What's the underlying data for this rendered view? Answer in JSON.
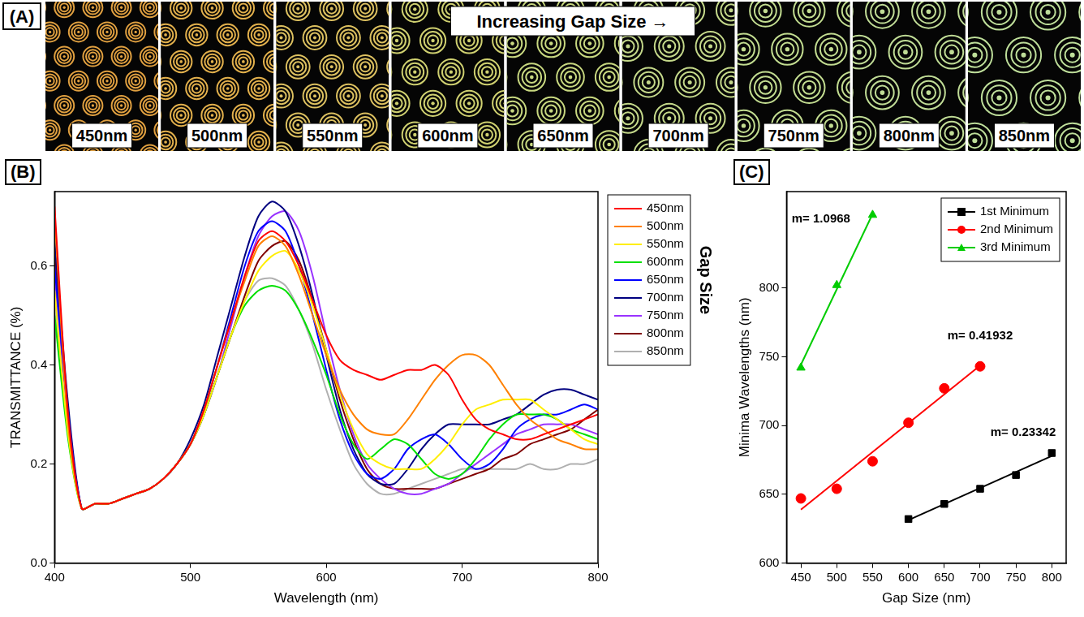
{
  "image_panel": {
    "panel_label": "(A)",
    "banner": "Increasing Gap Size →",
    "tiles": [
      "450nm",
      "500nm",
      "550nm",
      "600nm",
      "650nm",
      "700nm",
      "750nm",
      "800nm",
      "850nm"
    ]
  },
  "chart_data": [
    {
      "type": "line",
      "panel_label": "(B)",
      "x_label": "Wavelength (nm)",
      "y_label": "TRANSMITTANCE (%)",
      "x": [
        400,
        410,
        420,
        430,
        440,
        450,
        460,
        470,
        480,
        490,
        500,
        510,
        520,
        530,
        540,
        550,
        560,
        570,
        580,
        590,
        600,
        610,
        620,
        630,
        640,
        650,
        660,
        670,
        680,
        690,
        700,
        710,
        720,
        730,
        740,
        750,
        760,
        770,
        780,
        790,
        800
      ],
      "xlim": [
        400,
        800
      ],
      "xticks": [
        400,
        500,
        600,
        700,
        800
      ],
      "ylim": [
        0,
        0.75
      ],
      "yticks": [
        {
          "value": 0,
          "label": "0.0"
        },
        {
          "value": 0.2,
          "label": "0.2"
        },
        {
          "value": 0.4,
          "label": "0.4"
        },
        {
          "value": 0.6,
          "label": "0.6"
        }
      ],
      "grid": false,
      "legend": "right",
      "legend_title": "Gap Size",
      "series": [
        {
          "name": "450nm",
          "color": "#ff0000",
          "values": [
            0.72,
            0.3,
            0.11,
            0.12,
            0.12,
            0.13,
            0.14,
            0.15,
            0.17,
            0.2,
            0.24,
            0.31,
            0.4,
            0.49,
            0.58,
            0.65,
            0.67,
            0.65,
            0.6,
            0.53,
            0.46,
            0.41,
            0.39,
            0.38,
            0.37,
            0.38,
            0.39,
            0.39,
            0.4,
            0.38,
            0.33,
            0.29,
            0.27,
            0.26,
            0.25,
            0.25,
            0.26,
            0.27,
            0.28,
            0.29,
            0.3
          ]
        },
        {
          "name": "500nm",
          "color": "#ff8000",
          "values": [
            0.7,
            0.28,
            0.11,
            0.12,
            0.12,
            0.13,
            0.14,
            0.15,
            0.17,
            0.2,
            0.24,
            0.31,
            0.4,
            0.49,
            0.57,
            0.64,
            0.66,
            0.64,
            0.58,
            0.5,
            0.42,
            0.35,
            0.3,
            0.27,
            0.26,
            0.26,
            0.29,
            0.33,
            0.37,
            0.4,
            0.42,
            0.42,
            0.4,
            0.36,
            0.32,
            0.29,
            0.27,
            0.25,
            0.24,
            0.23,
            0.23
          ]
        },
        {
          "name": "550nm",
          "color": "#ffee00",
          "values": [
            0.55,
            0.26,
            0.11,
            0.12,
            0.12,
            0.13,
            0.14,
            0.15,
            0.17,
            0.2,
            0.24,
            0.3,
            0.38,
            0.46,
            0.53,
            0.59,
            0.62,
            0.63,
            0.59,
            0.52,
            0.43,
            0.34,
            0.27,
            0.22,
            0.2,
            0.19,
            0.19,
            0.19,
            0.21,
            0.24,
            0.28,
            0.31,
            0.32,
            0.33,
            0.33,
            0.33,
            0.31,
            0.29,
            0.27,
            0.25,
            0.24
          ]
        },
        {
          "name": "600nm",
          "color": "#00e000",
          "values": [
            0.5,
            0.25,
            0.11,
            0.12,
            0.12,
            0.13,
            0.14,
            0.15,
            0.17,
            0.2,
            0.24,
            0.3,
            0.38,
            0.46,
            0.52,
            0.55,
            0.56,
            0.55,
            0.51,
            0.45,
            0.38,
            0.3,
            0.24,
            0.21,
            0.23,
            0.25,
            0.24,
            0.21,
            0.18,
            0.17,
            0.18,
            0.21,
            0.25,
            0.28,
            0.3,
            0.3,
            0.3,
            0.29,
            0.27,
            0.26,
            0.25
          ]
        },
        {
          "name": "650nm",
          "color": "#0000ff",
          "values": [
            0.6,
            0.3,
            0.11,
            0.12,
            0.12,
            0.13,
            0.14,
            0.15,
            0.17,
            0.2,
            0.24,
            0.31,
            0.4,
            0.5,
            0.6,
            0.67,
            0.69,
            0.67,
            0.6,
            0.5,
            0.39,
            0.29,
            0.22,
            0.18,
            0.17,
            0.19,
            0.23,
            0.25,
            0.26,
            0.24,
            0.21,
            0.19,
            0.2,
            0.23,
            0.27,
            0.29,
            0.3,
            0.3,
            0.31,
            0.32,
            0.31
          ]
        },
        {
          "name": "700nm",
          "color": "#000080",
          "values": [
            0.65,
            0.32,
            0.11,
            0.12,
            0.12,
            0.13,
            0.14,
            0.15,
            0.17,
            0.2,
            0.25,
            0.32,
            0.42,
            0.52,
            0.62,
            0.7,
            0.73,
            0.71,
            0.64,
            0.54,
            0.42,
            0.31,
            0.23,
            0.18,
            0.16,
            0.16,
            0.19,
            0.23,
            0.26,
            0.28,
            0.28,
            0.28,
            0.28,
            0.29,
            0.3,
            0.32,
            0.34,
            0.35,
            0.35,
            0.34,
            0.33
          ]
        },
        {
          "name": "750nm",
          "color": "#9933ff",
          "values": [
            0.58,
            0.29,
            0.11,
            0.12,
            0.12,
            0.13,
            0.14,
            0.15,
            0.17,
            0.2,
            0.24,
            0.3,
            0.38,
            0.48,
            0.58,
            0.66,
            0.7,
            0.71,
            0.67,
            0.58,
            0.46,
            0.35,
            0.26,
            0.2,
            0.17,
            0.15,
            0.14,
            0.14,
            0.15,
            0.16,
            0.18,
            0.2,
            0.22,
            0.24,
            0.26,
            0.27,
            0.28,
            0.28,
            0.28,
            0.27,
            0.26
          ]
        },
        {
          "name": "800nm",
          "color": "#800000",
          "values": [
            0.62,
            0.3,
            0.11,
            0.12,
            0.12,
            0.13,
            0.14,
            0.15,
            0.17,
            0.2,
            0.24,
            0.3,
            0.38,
            0.46,
            0.54,
            0.61,
            0.64,
            0.65,
            0.61,
            0.53,
            0.43,
            0.33,
            0.25,
            0.19,
            0.16,
            0.15,
            0.15,
            0.15,
            0.15,
            0.16,
            0.17,
            0.18,
            0.19,
            0.21,
            0.22,
            0.24,
            0.25,
            0.26,
            0.27,
            0.29,
            0.31
          ]
        },
        {
          "name": "850nm",
          "color": "#b0b0b0",
          "values": [
            0.52,
            0.26,
            0.11,
            0.12,
            0.12,
            0.13,
            0.14,
            0.15,
            0.17,
            0.2,
            0.24,
            0.3,
            0.38,
            0.46,
            0.53,
            0.57,
            0.575,
            0.56,
            0.51,
            0.44,
            0.35,
            0.27,
            0.2,
            0.16,
            0.14,
            0.14,
            0.15,
            0.16,
            0.17,
            0.18,
            0.19,
            0.19,
            0.19,
            0.19,
            0.19,
            0.2,
            0.19,
            0.19,
            0.2,
            0.2,
            0.21
          ]
        }
      ]
    },
    {
      "type": "scatter",
      "panel_label": "(C)",
      "x_label": "Gap Size (nm)",
      "y_label": "Minima Wavelengths (nm)",
      "xlim": [
        430,
        820
      ],
      "xticks": [
        450,
        500,
        550,
        600,
        650,
        700,
        750,
        800
      ],
      "ylim": [
        600,
        870
      ],
      "yticks": [
        600,
        650,
        700,
        750,
        800
      ],
      "grid": false,
      "legend": "upper right",
      "series": [
        {
          "name": "1st Minimum",
          "color": "#000000",
          "marker": "square",
          "x": [
            600,
            650,
            700,
            750,
            800
          ],
          "values": [
            632,
            643,
            654,
            664,
            680
          ],
          "fit": {
            "x": [
              600,
              800
            ],
            "values": [
              631.3,
              677.9
            ]
          }
        },
        {
          "name": "2nd Minimum",
          "color": "#ff0000",
          "marker": "circle",
          "x": [
            450,
            500,
            550,
            600,
            650,
            700
          ],
          "values": [
            647,
            654,
            674,
            702,
            727,
            743
          ],
          "fit": {
            "x": [
              450,
              700
            ],
            "values": [
              638.8,
              743.6
            ]
          }
        },
        {
          "name": "3rd Minimum",
          "color": "#00cc00",
          "marker": "triangle",
          "x": [
            450,
            500,
            550
          ],
          "values": [
            742,
            802,
            853
          ],
          "fit": {
            "x": [
              450,
              550
            ],
            "values": [
              744.2,
              853.8
            ]
          }
        }
      ],
      "annotations": [
        {
          "text": "m= 1.0968",
          "x": 478,
          "y": 850
        },
        {
          "text": "m= 0.41932",
          "x": 700,
          "y": 765
        },
        {
          "text": "m= 0.23342",
          "x": 760,
          "y": 695
        }
      ]
    }
  ]
}
